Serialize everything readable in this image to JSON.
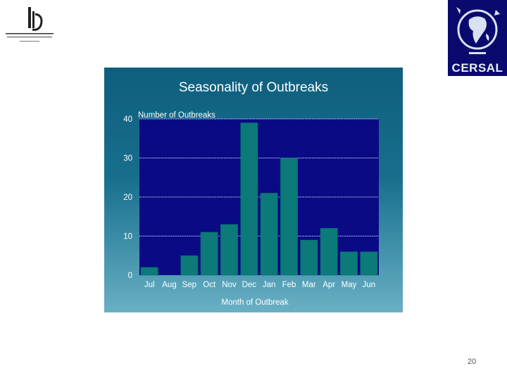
{
  "slide": {
    "page_number": "20",
    "logo_right_text": "CERSAL",
    "colors": {
      "panel_bg_top": "#0f5e7d",
      "plot_bg": "#0a0a85",
      "bar": "#0b7a78",
      "gridline": "#c8c8ff",
      "text": "#ffffff",
      "logo_right_bg": "#0a0a6e"
    }
  },
  "chart_data": {
    "type": "bar",
    "title": "Seasonality of Outbreaks",
    "ylabel": "Number of Outbreaks",
    "xlabel": "Month of Outbreak",
    "categories": [
      "Jul",
      "Aug",
      "Sep",
      "Oct",
      "Nov",
      "Dec",
      "Jan",
      "Feb",
      "Mar",
      "Apr",
      "May",
      "Jun"
    ],
    "values": [
      2,
      0,
      5,
      11,
      13,
      39,
      21,
      30,
      9,
      12,
      6,
      6
    ],
    "ylim": [
      0,
      40
    ],
    "yticks": [
      0,
      10,
      20,
      30,
      40
    ],
    "ytick_labels": [
      "0",
      "10",
      "20",
      "30",
      "40"
    ],
    "grid": true,
    "legend": "none"
  }
}
